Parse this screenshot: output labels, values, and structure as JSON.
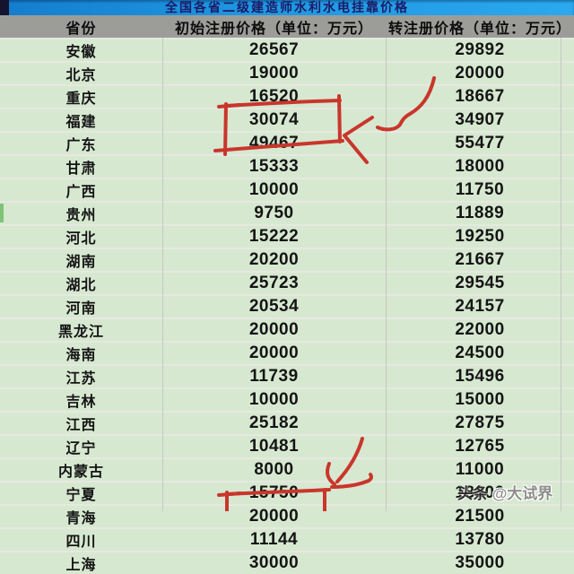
{
  "title": "全国各省二级建造师水利水电挂靠价格",
  "header": {
    "province": "省份",
    "initial": "初始注册价格（单位：万元）",
    "transfer": "转注册价格（单位：万元）"
  },
  "rows": [
    {
      "province": "安徽",
      "initial": "26567",
      "transfer": "29892"
    },
    {
      "province": "北京",
      "initial": "19000",
      "transfer": "20000"
    },
    {
      "province": "重庆",
      "initial": "16520",
      "transfer": "18667"
    },
    {
      "province": "福建",
      "initial": "30074",
      "transfer": "34907"
    },
    {
      "province": "广东",
      "initial": "49467",
      "transfer": "55477"
    },
    {
      "province": "甘肃",
      "initial": "15333",
      "transfer": "18000"
    },
    {
      "province": "广西",
      "initial": "10000",
      "transfer": "11750"
    },
    {
      "province": "贵州",
      "initial": "9750",
      "transfer": "11889"
    },
    {
      "province": "河北",
      "initial": "15222",
      "transfer": "19250"
    },
    {
      "province": "湖南",
      "initial": "20200",
      "transfer": "21667"
    },
    {
      "province": "湖北",
      "initial": "25723",
      "transfer": "29545"
    },
    {
      "province": "河南",
      "initial": "20534",
      "transfer": "24157"
    },
    {
      "province": "黑龙江",
      "initial": "20000",
      "transfer": "22000"
    },
    {
      "province": "海南",
      "initial": "20000",
      "transfer": "24500"
    },
    {
      "province": "江苏",
      "initial": "11739",
      "transfer": "15496"
    },
    {
      "province": "吉林",
      "initial": "10000",
      "transfer": "15000"
    },
    {
      "province": "江西",
      "initial": "25182",
      "transfer": "27875"
    },
    {
      "province": "辽宁",
      "initial": "10481",
      "transfer": "12765"
    },
    {
      "province": "内蒙古",
      "initial": "8000",
      "transfer": "11000"
    },
    {
      "province": "宁夏",
      "initial": "15750",
      "transfer": "18000"
    },
    {
      "province": "青海",
      "initial": "20000",
      "transfer": "21500"
    },
    {
      "province": "四川",
      "initial": "11144",
      "transfer": "13780"
    },
    {
      "province": "上海",
      "initial": "30000",
      "transfer": "35000"
    }
  ],
  "watermark": {
    "prefix": "头条",
    "suffix": "@大试界"
  },
  "annotations": {
    "rectangle_1": "red box around 福建/广东 initial prices",
    "arrow_1": "red arrow pointing left at boxed prices",
    "arrow_2": "red arrow pointing down at 上海 initial price",
    "rectangle_2": "red box around 上海 initial price"
  },
  "colors": {
    "title_bar_blue": "#1e95e0",
    "title_text": "#1c1b66",
    "header_bg": "#9c9c99",
    "row_bg": "#d7e8d1",
    "grid_line": "#c2c9bf",
    "annotation_red": "#c9362b",
    "accent_green": "#7fc475"
  },
  "chart_data": {
    "type": "table",
    "title": "全国各省二级建造师水利水电挂靠价格",
    "columns": [
      "省份",
      "初始注册价格（单位：万元）",
      "转注册价格（单位：万元）"
    ],
    "rows": [
      [
        "安徽",
        26567,
        29892
      ],
      [
        "北京",
        19000,
        20000
      ],
      [
        "重庆",
        16520,
        18667
      ],
      [
        "福建",
        30074,
        34907
      ],
      [
        "广东",
        49467,
        55477
      ],
      [
        "甘肃",
        15333,
        18000
      ],
      [
        "广西",
        10000,
        11750
      ],
      [
        "贵州",
        9750,
        11889
      ],
      [
        "河北",
        15222,
        19250
      ],
      [
        "湖南",
        20200,
        21667
      ],
      [
        "湖北",
        25723,
        29545
      ],
      [
        "河南",
        20534,
        24157
      ],
      [
        "黑龙江",
        20000,
        22000
      ],
      [
        "海南",
        20000,
        24500
      ],
      [
        "江苏",
        11739,
        15496
      ],
      [
        "吉林",
        10000,
        15000
      ],
      [
        "江西",
        25182,
        27875
      ],
      [
        "辽宁",
        10481,
        12765
      ],
      [
        "内蒙古",
        8000,
        11000
      ],
      [
        "宁夏",
        15750,
        18000
      ],
      [
        "青海",
        20000,
        21500
      ],
      [
        "四川",
        11144,
        13780
      ],
      [
        "上海",
        30000,
        35000
      ]
    ]
  }
}
